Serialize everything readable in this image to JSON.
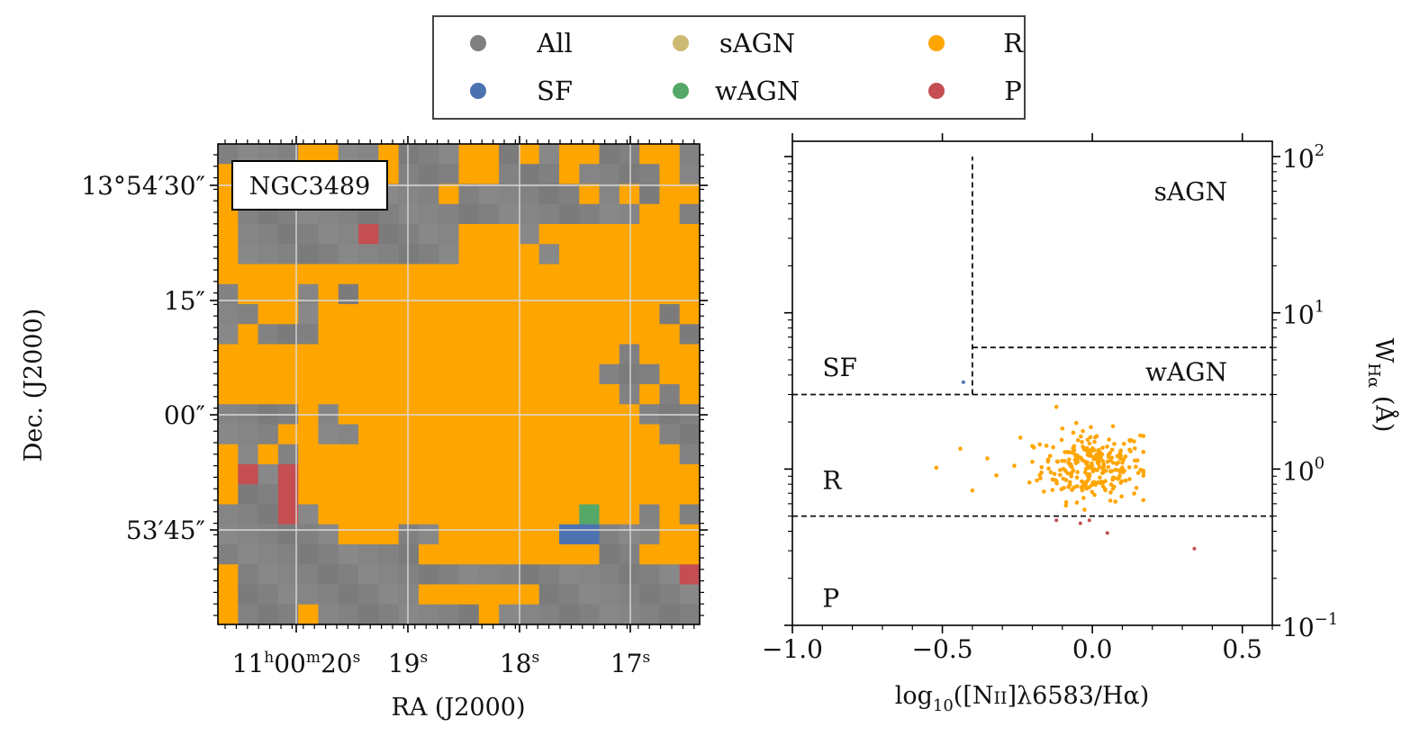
{
  "colors": {
    "All": "#808080",
    "SF": "#4c72b0",
    "sAGN": "#ccb974",
    "wAGN": "#55a868",
    "R": "#ffa500",
    "P": "#c44e52"
  },
  "legend": {
    "entries": [
      {
        "label": "All",
        "key": "All"
      },
      {
        "label": "SF",
        "key": "SF"
      },
      {
        "label": "sAGN",
        "key": "sAGN"
      },
      {
        "label": "wAGN",
        "key": "wAGN"
      },
      {
        "label": "R",
        "key": "R"
      },
      {
        "label": "P",
        "key": "P"
      }
    ]
  },
  "chart_data": [
    {
      "type": "heatmap",
      "title": "",
      "galaxy": "NGC3489",
      "xlabel": "RA (J2000)",
      "ylabel": "Dec. (J2000)",
      "xticks": [
        {
          "h": "11",
          "hs": "h",
          "m": "00",
          "ms": "m",
          "s": "20",
          "ss": "s"
        },
        {
          "s": "19",
          "ss": "s"
        },
        {
          "s": "18",
          "ss": "s"
        },
        {
          "s": "17",
          "ss": "s"
        }
      ],
      "yticks": [
        "13°54′30″",
        "15″",
        "00″",
        "53′45″"
      ],
      "grid": true,
      "cols": 24,
      "rows": 24,
      "legend_map": {
        ".": "All",
        "R": "R",
        "S": "SF",
        "W": "wAGN",
        "P": "P"
      },
      "map": [
        "....RR..R...RR.R.RR..RR.",
        "R...RR.RR...RR...R....R.",
        "R..........R......R.R.RR",
        "R....................RR.",
        "R......P....RRR.RRRRRRRR",
        "R...........RRRR.RRRRRRR",
        "RRRRRRRRRRRRRRRRRRRRRRRR",
        ".RRR.R.RRRRRRRRRRRRRRRRR",
        "..RR.RRRRRRRRRRRRRRRRR.R",
        ".R...RRRRRRRRRRRRRRRRRR.",
        "RRRRRRRRRRRRRRRRRRRR.RRR",
        "RRRRRRRRRRRRRRRRRRR...RR",
        "RRRRRRRRRRRRRRRRRRRR.R.R",
        "....R.RRRRRRRRRRRRRRR...",
        "...RR..RRRRRRRRRRRRRRR..",
        "R.R.RRRRRRRRRRRRRRRRRRR.",
        "RP.PRRRRRRRRRRRRRRRRRRRR",
        "R..PRRRRRRRRRRRRRRRRRRRR",
        "...P.RRRRRRRRRRRRRWRR.R.",
        "......RRR..RRRRRRSS...RR",
        "..........RRRRRRRRR..RRR",
        "R......................P",
        "R.........RRRRRR........",
        "R...R........R.........."
      ]
    },
    {
      "type": "scatter",
      "title": "",
      "xlabel": {
        "pre": "log",
        "sub": "10",
        "mid": "([N",
        "sc": "II",
        "post": "]λ6583/Hα)"
      },
      "ylabel": {
        "pre": "W",
        "sub": "Hα",
        "post": " (Å)"
      },
      "xlim": [
        -1.0,
        0.6
      ],
      "ylim_log10": [
        -1,
        2
      ],
      "yscale": "log",
      "xticks": [
        -1.0,
        -0.5,
        0.0,
        0.5
      ],
      "xtick_labels": [
        "−1.0",
        "−0.5",
        "0.0",
        "0.5"
      ],
      "yticks": [
        {
          "base": "10",
          "exp": "2",
          "v": 2
        },
        {
          "base": "10",
          "exp": "1",
          "v": 1
        },
        {
          "base": "10",
          "exp": "0",
          "v": 0
        },
        {
          "base": "10",
          "exp": "−1",
          "v": -1
        }
      ],
      "region_labels": [
        {
          "text": "sAGN",
          "x": 0.45,
          "y": 60,
          "align": "end"
        },
        {
          "text": "wAGN",
          "x": 0.45,
          "y": 4.2,
          "align": "end"
        },
        {
          "text": "SF",
          "x": -0.9,
          "y": 4.5,
          "align": "start"
        },
        {
          "text": "R",
          "x": -0.9,
          "y": 0.85,
          "align": "start"
        },
        {
          "text": "P",
          "x": -0.9,
          "y": 0.15,
          "align": "start"
        }
      ],
      "boundaries": [
        {
          "x": [
            -1.0,
            0.6
          ],
          "y": [
            3,
            3
          ]
        },
        {
          "x": [
            -1.0,
            0.6
          ],
          "y": [
            0.5,
            0.5
          ]
        },
        {
          "x": [
            -0.4,
            0.6
          ],
          "y": [
            6,
            6
          ]
        },
        {
          "x": [
            -0.4,
            -0.4
          ],
          "y": [
            3,
            100
          ]
        }
      ],
      "series": [
        {
          "name": "SF",
          "points": [
            [
              -0.43,
              3.6
            ]
          ]
        },
        {
          "name": "P",
          "points": [
            [
              -0.12,
              0.47
            ],
            [
              -0.04,
              0.45
            ],
            [
              -0.01,
              0.47
            ],
            [
              0.05,
              0.39
            ],
            [
              0.34,
              0.31
            ]
          ]
        },
        {
          "name": "R",
          "cloud": {
            "n": 260,
            "x_center": 0.0,
            "x_sd": 0.085,
            "logy_center": 0.02,
            "logy_sd": 0.11,
            "x_min": -0.2,
            "x_max": 0.17,
            "logy_min": -0.26,
            "logy_max": 0.44
          },
          "points": [
            [
              -0.52,
              1.02
            ],
            [
              -0.44,
              1.35
            ],
            [
              -0.4,
              0.73
            ],
            [
              -0.35,
              1.17
            ],
            [
              -0.32,
              0.91
            ],
            [
              -0.26,
              1.05
            ],
            [
              -0.24,
              1.59
            ],
            [
              -0.21,
              0.82
            ],
            [
              0.16,
              1.64
            ],
            [
              -0.12,
              2.5
            ]
          ]
        }
      ]
    }
  ]
}
